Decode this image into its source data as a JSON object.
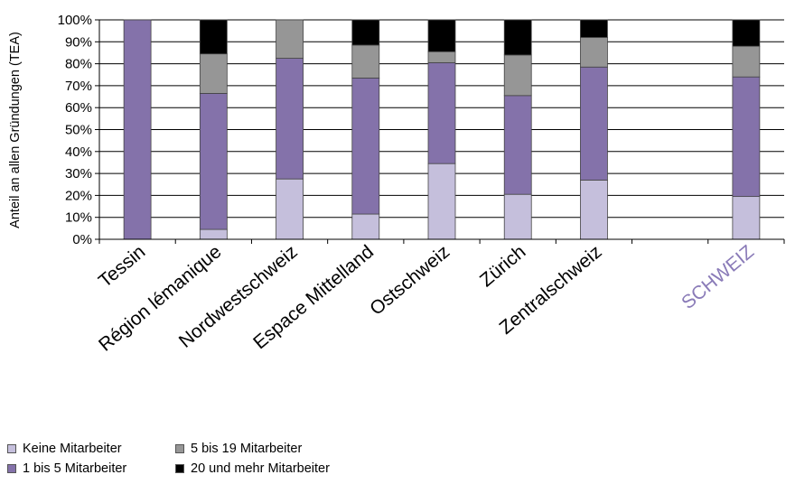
{
  "chart_data": {
    "type": "bar",
    "stacked": true,
    "ylabel": "Anteil an allen Gründungen (TEA)",
    "ylim": [
      0,
      100
    ],
    "y_ticks": [
      "0%",
      "10%",
      "20%",
      "30%",
      "40%",
      "50%",
      "60%",
      "70%",
      "80%",
      "90%",
      "100%"
    ],
    "categories": [
      "Tessin",
      "Région lémanique",
      "Nordwestschweiz",
      "Espace Mittelland",
      "Ostschweiz",
      "Zürich",
      "Zentralschweiz",
      "",
      "SCHWEIZ"
    ],
    "highlight_category": "SCHWEIZ",
    "highlight_color": "#8a7bb8",
    "series": [
      {
        "name": "Keine Mitarbeiter",
        "color": "#c5bfdc",
        "values": [
          0,
          4.5,
          27.5,
          11.5,
          34.5,
          20.5,
          27,
          null,
          19.5
        ]
      },
      {
        "name": "1 bis 5 Mitarbeiter",
        "color": "#8472aa",
        "values": [
          100,
          62,
          55,
          62,
          46,
          45,
          51.5,
          null,
          54.5
        ]
      },
      {
        "name": "5 bis 19 Mitarbeiter",
        "color": "#969696",
        "values": [
          0,
          18,
          17.5,
          15,
          5,
          18.5,
          13.5,
          null,
          14
        ]
      },
      {
        "name": "20 und mehr Mitarbeiter",
        "color": "#000000",
        "values": [
          0,
          15.5,
          0,
          11.5,
          14.5,
          16,
          8,
          null,
          12
        ]
      }
    ],
    "legend_position": "bottom-left",
    "grid": true
  }
}
